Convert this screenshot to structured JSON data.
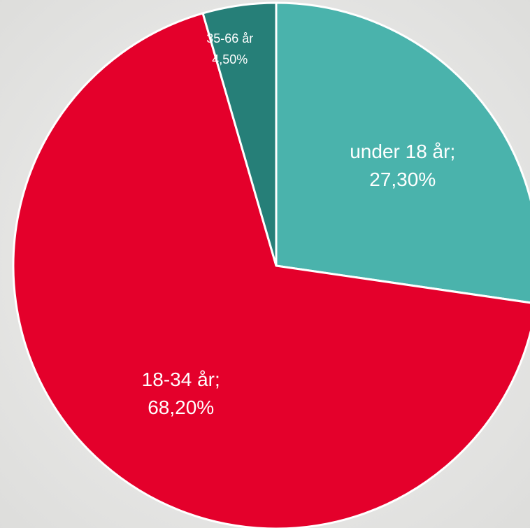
{
  "chart_data": {
    "type": "pie",
    "categories": [
      "under 18 år;",
      "18-34 år;",
      "35-66 år"
    ],
    "values": [
      27.3,
      68.2,
      4.5
    ],
    "value_labels": [
      "27,30%",
      "68,20%",
      "4,50%"
    ],
    "colors": [
      "#4ab3ac",
      "#e4002b",
      "#267f78"
    ]
  }
}
